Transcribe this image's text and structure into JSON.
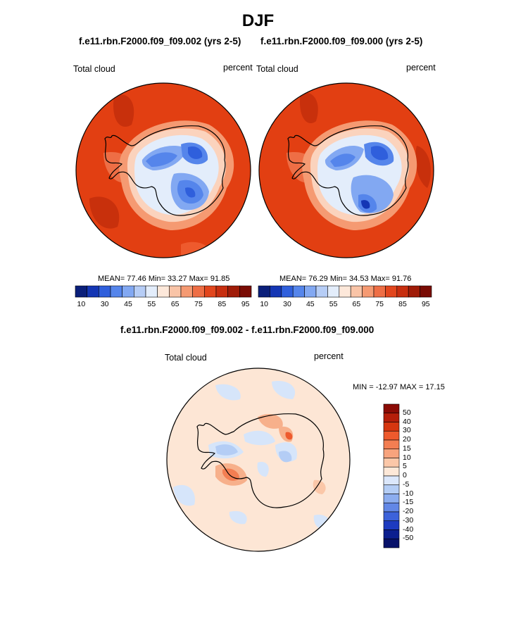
{
  "page": {
    "title": "DJF",
    "left_panel": {
      "case": "f.e11.rbn.F2000.f09_f09.002 (yrs 2-5)",
      "field": "Total cloud",
      "units": "percent",
      "stats": "MEAN=  77.46  Min=  33.27  Max=  91.85"
    },
    "right_panel": {
      "case": "f.e11.rbn.F2000.f09_f09.000 (yrs 2-5)",
      "field": "Total cloud",
      "units": "percent",
      "stats": "MEAN=  76.29  Min=  34.53  Max=  91.76"
    },
    "diff_panel": {
      "case": "f.e11.rbn.F2000.f09_f09.002 - f.e11.rbn.F2000.f09_f09.000",
      "field": "Total cloud",
      "units": "percent",
      "stats": "MIN = -12.97 MAX =  17.15"
    },
    "colorbar_abs": {
      "labels": [
        "10",
        "30",
        "45",
        "55",
        "65",
        "75",
        "85",
        "95"
      ],
      "colors": [
        "#0a1f7a",
        "#1436b4",
        "#2f5fdc",
        "#5585eb",
        "#82a8f2",
        "#b6cdf6",
        "#e3edfb",
        "#fde8da",
        "#f9c4a7",
        "#f59a72",
        "#ee6e45",
        "#e2461d",
        "#c72e0f",
        "#a01c08",
        "#7a0c04"
      ]
    },
    "colorbar_diff": {
      "labels": [
        "50",
        "40",
        "30",
        "20",
        "15",
        "10",
        "5",
        "0",
        "-5",
        "-10",
        "-15",
        "-20",
        "-30",
        "-40",
        "-50"
      ],
      "colors": [
        "#8b0b05",
        "#b51e0a",
        "#d6360f",
        "#ee5a2d",
        "#f37e52",
        "#f7a37d",
        "#fbc7a8",
        "#fde8d8",
        "#dbe7fb",
        "#b4cdf5",
        "#8cadef",
        "#6287e6",
        "#3c62da",
        "#1d3bc0",
        "#0c1f8f",
        "#08126a"
      ]
    },
    "map_colors": {
      "ocean_high": "#e23f12",
      "ocean_dark": "#c8300c",
      "continent_low": "#5a86e6",
      "continent_mid": "#a9c4f4",
      "transition": "#fbd3bd",
      "diff_background": "#fde6d5",
      "diff_light_blue": "#d6e5fa",
      "diff_pink": "#f7b08b",
      "coastline": "#000000"
    }
  }
}
